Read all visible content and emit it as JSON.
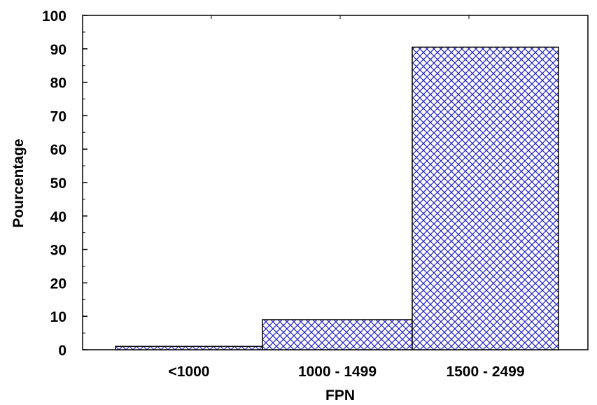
{
  "chart_data": {
    "type": "bar",
    "categories": [
      "<1000",
      "1000  - 1499",
      "1500 - 2499"
    ],
    "values": [
      1,
      9,
      90.5
    ],
    "xlabel": "FPN",
    "ylabel": "Pourcentage",
    "ylim": [
      0,
      100
    ],
    "yticks": [
      "0",
      "10",
      "20",
      "30",
      "40",
      "50",
      "60",
      "70",
      "80",
      "90",
      "100"
    ],
    "grid": false,
    "bar_style": "crosshatch",
    "colors": {
      "hatch": "#2222cc",
      "border": "#000000"
    }
  }
}
